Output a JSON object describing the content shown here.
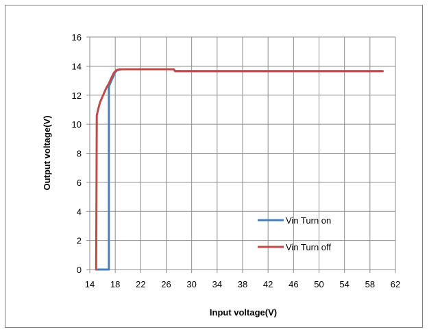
{
  "chart_data": {
    "type": "line",
    "title": "",
    "xlabel": "Input voltage(V)",
    "ylabel": "Output voltage(V)",
    "xlim": [
      14,
      62
    ],
    "ylim": [
      0,
      16
    ],
    "xticks": [
      14,
      18,
      22,
      26,
      30,
      34,
      38,
      42,
      46,
      50,
      54,
      58,
      62
    ],
    "yticks": [
      0,
      2,
      4,
      6,
      8,
      10,
      12,
      14,
      16
    ],
    "xtick_labels": [
      "14",
      "18",
      "22",
      "26",
      "30",
      "34",
      "38",
      "42",
      "46",
      "50",
      "54",
      "58",
      "62"
    ],
    "ytick_labels": [
      "0",
      "2",
      "4",
      "6",
      "8",
      "10",
      "12",
      "14",
      "16"
    ],
    "grid": true,
    "legend_position": "bottom-right",
    "series": [
      {
        "name": "Vin Turn on",
        "color": "#4a7ebb",
        "points": [
          [
            15.0,
            0
          ],
          [
            15.5,
            0
          ],
          [
            16.0,
            0
          ],
          [
            16.5,
            0
          ],
          [
            17.0,
            0
          ],
          [
            17.0,
            12.6
          ],
          [
            17.2,
            12.8
          ],
          [
            17.5,
            13.1
          ],
          [
            17.8,
            13.4
          ],
          [
            18.0,
            13.6
          ],
          [
            18.3,
            13.7
          ],
          [
            18.6,
            13.75
          ],
          [
            19.0,
            13.78
          ],
          [
            20,
            13.78
          ],
          [
            22,
            13.78
          ],
          [
            24,
            13.78
          ],
          [
            26,
            13.78
          ],
          [
            27.2,
            13.78
          ],
          [
            27.4,
            13.65
          ],
          [
            30,
            13.65
          ],
          [
            34,
            13.65
          ],
          [
            38,
            13.65
          ],
          [
            42,
            13.65
          ],
          [
            46,
            13.65
          ],
          [
            50,
            13.65
          ],
          [
            54,
            13.65
          ],
          [
            58,
            13.65
          ],
          [
            60,
            13.65
          ]
        ]
      },
      {
        "name": "Vin Turn off",
        "color": "#be4b48",
        "points": [
          [
            15.0,
            0
          ],
          [
            15.05,
            5
          ],
          [
            15.1,
            10.6
          ],
          [
            15.3,
            11.0
          ],
          [
            15.6,
            11.5
          ],
          [
            16.0,
            11.9
          ],
          [
            16.3,
            12.2
          ],
          [
            16.6,
            12.5
          ],
          [
            17.0,
            12.8
          ],
          [
            17.4,
            13.2
          ],
          [
            17.8,
            13.55
          ],
          [
            18.2,
            13.72
          ],
          [
            18.6,
            13.78
          ],
          [
            19.0,
            13.78
          ],
          [
            20,
            13.78
          ],
          [
            22,
            13.78
          ],
          [
            24,
            13.78
          ],
          [
            26,
            13.78
          ],
          [
            27.2,
            13.78
          ],
          [
            27.4,
            13.65
          ],
          [
            30,
            13.65
          ],
          [
            34,
            13.65
          ],
          [
            38,
            13.65
          ],
          [
            42,
            13.65
          ],
          [
            46,
            13.65
          ],
          [
            50,
            13.65
          ],
          [
            54,
            13.65
          ],
          [
            58,
            13.65
          ],
          [
            60,
            13.65
          ]
        ]
      }
    ]
  }
}
